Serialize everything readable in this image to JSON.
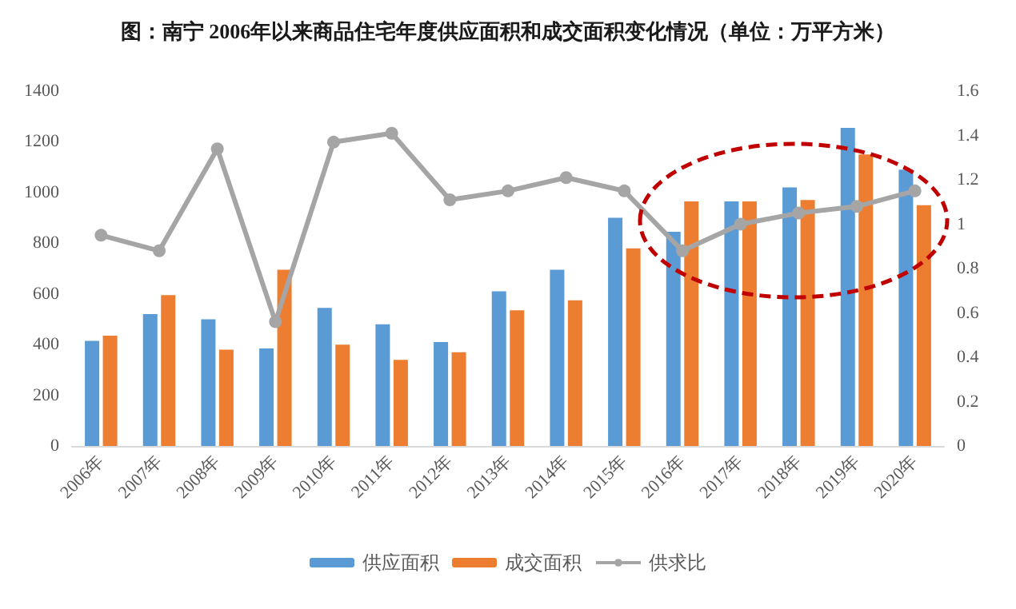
{
  "chart_data": {
    "type": "bar",
    "title": "图：南宁 2006年以来商品住宅年度供应面积和成交面积变化情况（单位：万平方米）",
    "categories": [
      "2006年",
      "2007年",
      "2008年",
      "2009年",
      "2010年",
      "2011年",
      "2012年",
      "2013年",
      "2014年",
      "2015年",
      "2016年",
      "2017年",
      "2018年",
      "2019年",
      "2020年"
    ],
    "series": [
      {
        "name": "供应面积",
        "color": "#5b9bd5",
        "values": [
          415,
          520,
          500,
          385,
          545,
          480,
          410,
          610,
          695,
          900,
          845,
          965,
          1020,
          1255,
          1090
        ]
      },
      {
        "name": "成交面积",
        "color": "#ed7d31",
        "values": [
          435,
          595,
          380,
          695,
          400,
          340,
          370,
          535,
          575,
          780,
          965,
          965,
          970,
          1150,
          950
        ]
      },
      {
        "name": "供求比",
        "type": "line",
        "axis": "y2",
        "color": "#a5a5a5",
        "values": [
          0.95,
          0.88,
          1.34,
          0.56,
          1.37,
          1.41,
          1.11,
          1.15,
          1.21,
          1.15,
          0.88,
          1.0,
          1.05,
          1.08,
          1.15
        ]
      }
    ],
    "ylim": [
      0,
      1400
    ],
    "yticks": [
      0,
      200,
      400,
      600,
      800,
      1000,
      1200,
      1400
    ],
    "y2lim": [
      0,
      1.6
    ],
    "y2ticks": [
      0,
      0.2,
      0.4,
      0.6,
      0.8,
      1,
      1.2,
      1.4,
      1.6
    ],
    "grid": false,
    "legend": "bottom",
    "marker": "circle"
  }
}
